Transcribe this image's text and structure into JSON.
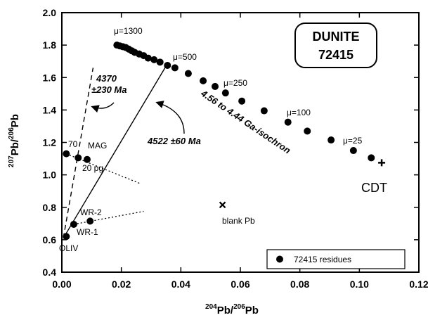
{
  "chart_data": {
    "type": "scatter",
    "title": "",
    "sample_box": {
      "line1": "DUNITE",
      "line2": "72415"
    },
    "xlabel": {
      "sup1": "204",
      "base1": "Pb/",
      "sup2": "206",
      "base2": "Pb"
    },
    "ylabel": {
      "sup1": "207",
      "base1": "Pb/",
      "sup2": "206",
      "base2": "Pb"
    },
    "xlim": [
      0,
      0.12
    ],
    "ylim": [
      0.4,
      2.0
    ],
    "x_ticks": [
      "0.00",
      "0.02",
      "0.04",
      "0.06",
      "0.08",
      "0.10",
      "0.12"
    ],
    "y_ticks": [
      "0.4",
      "0.6",
      "0.8",
      "1.0",
      "1.2",
      "1.4",
      "1.6",
      "1.8",
      "2.0"
    ],
    "grid": false,
    "legend": {
      "position": "bottom-right",
      "label": "72415 residues"
    },
    "series": [
      {
        "name": "72415 residues",
        "marker": "filled-circle",
        "points": [
          [
            0.0185,
            1.8
          ],
          [
            0.0195,
            1.795
          ],
          [
            0.0205,
            1.79
          ],
          [
            0.0215,
            1.785
          ],
          [
            0.0225,
            1.775
          ],
          [
            0.0235,
            1.765
          ],
          [
            0.0245,
            1.755
          ],
          [
            0.026,
            1.745
          ],
          [
            0.0275,
            1.735
          ],
          [
            0.029,
            1.72
          ],
          [
            0.031,
            1.71
          ],
          [
            0.033,
            1.695
          ],
          [
            0.0355,
            1.675
          ],
          [
            0.038,
            1.66
          ],
          [
            0.0425,
            1.625
          ],
          [
            0.0475,
            1.58
          ],
          [
            0.0515,
            1.545
          ],
          [
            0.055,
            1.505
          ],
          [
            0.0605,
            1.455
          ],
          [
            0.068,
            1.395
          ],
          [
            0.076,
            1.325
          ],
          [
            0.0825,
            1.27
          ],
          [
            0.0905,
            1.215
          ],
          [
            0.098,
            1.15
          ],
          [
            0.104,
            1.105
          ],
          [
            0.0015,
            1.13
          ],
          [
            0.0055,
            1.105
          ],
          [
            0.0085,
            1.095
          ],
          [
            0.0015,
            0.62
          ],
          [
            0.004,
            0.695
          ],
          [
            0.0095,
            0.715
          ]
        ]
      }
    ],
    "other_points": [
      {
        "label": "CDT",
        "marker": "plus",
        "point": [
          0.1075,
          1.075
        ]
      },
      {
        "label": "blank Pb",
        "marker": "x",
        "point": [
          0.054,
          0.815
        ]
      }
    ],
    "lines": [
      {
        "style": "solid",
        "from": [
          0.0005,
          0.61
        ],
        "to": [
          0.0355,
          1.685
        ]
      },
      {
        "style": "dashed",
        "from": [
          0.0005,
          0.61
        ],
        "to": [
          0.0105,
          1.66
        ]
      },
      {
        "style": "dotted",
        "from": [
          0.0015,
          1.13
        ],
        "to": [
          0.0265,
          0.945
        ]
      },
      {
        "style": "dotted",
        "from": [
          0.004,
          0.695
        ],
        "to": [
          0.0275,
          0.775
        ]
      }
    ],
    "annotations": {
      "mu1300": "μ=1300",
      "mu500": "μ=500",
      "mu250": "μ=250",
      "mu100": "μ=100",
      "mu25": "μ=25",
      "age_dashed_1": "4370",
      "age_dashed_2": "±230 Ma",
      "age_solid": "4522 ±60 Ma",
      "isochron": "4.56 to 4.44 Ga-isochron",
      "mag": "MAG",
      "p70": "70",
      "p20": "20 pg",
      "wr2": "WR-2",
      "wr1": "WR-1",
      "oliv": "OLIV",
      "cdt": "CDT",
      "blank": "blank Pb"
    }
  }
}
